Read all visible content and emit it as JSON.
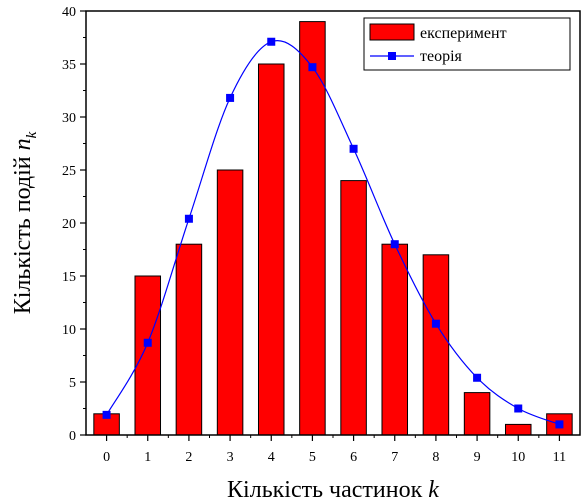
{
  "chart_data": {
    "type": "bar",
    "xlabel": {
      "text": "Кількість частинок ",
      "var": "k"
    },
    "ylabel": {
      "text": "Кількість подій ",
      "var": "n",
      "sub": "k"
    },
    "x": [
      0,
      1,
      2,
      3,
      4,
      5,
      6,
      7,
      8,
      9,
      10,
      11
    ],
    "xticks": [
      "0",
      "1",
      "2",
      "3",
      "4",
      "5",
      "6",
      "7",
      "8",
      "9",
      "10",
      "11"
    ],
    "yticks": [
      "0",
      "5",
      "10",
      "15",
      "20",
      "25",
      "30",
      "35",
      "40"
    ],
    "xlim": [
      -0.5,
      11.5
    ],
    "ylim": [
      0,
      40
    ],
    "grid": false,
    "legend_position": "top-right",
    "series": [
      {
        "name": "експеримент",
        "type": "bar",
        "color": "#ff0000",
        "values": [
          2,
          15,
          18,
          25,
          35,
          39,
          24,
          18,
          17,
          4,
          1,
          2
        ]
      },
      {
        "name": "теорія",
        "type": "line",
        "color": "#0000ff",
        "values": [
          1.9,
          8.7,
          20.4,
          31.8,
          37.1,
          34.7,
          27.0,
          18.0,
          10.5,
          5.4,
          2.5,
          1.0
        ]
      }
    ]
  }
}
